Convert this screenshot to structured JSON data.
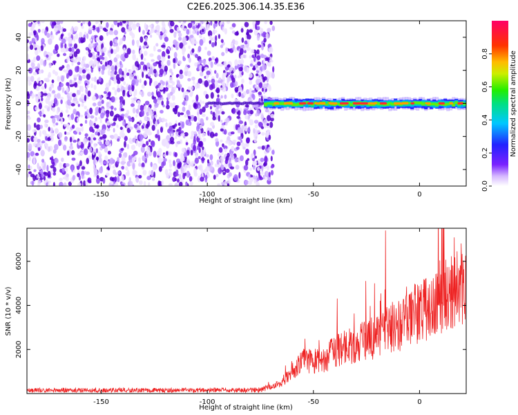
{
  "title": "C2E6.2025.306.14.35.E36",
  "chart_data": [
    {
      "type": "heatmap",
      "xlabel": "Height of straight line (km)",
      "ylabel": "Frequency (Hz)",
      "xlim": [
        -185,
        22
      ],
      "ylim": [
        -50,
        50
      ],
      "xticks": [
        -150,
        -100,
        -50,
        0
      ],
      "yticks": [
        -40,
        -20,
        0,
        20,
        40
      ],
      "noise_region": [
        -185,
        -72
      ],
      "signal_region": [
        -72,
        22
      ],
      "signal_frequency": 0,
      "colorbar": {
        "label": "Normalized spectral amplitude",
        "range": [
          0.0,
          1.0
        ],
        "ticks": [
          0.0,
          0.2,
          0.4,
          0.6,
          0.8
        ],
        "tick_labels": [
          "0.0",
          "0.2",
          "0.4",
          "0.6",
          "0.8"
        ]
      }
    },
    {
      "type": "line",
      "xlabel": "Height of straight line (km)",
      "ylabel": "SNR (10 * v/v)",
      "xlim": [
        -185,
        22
      ],
      "ylim": [
        0,
        7500
      ],
      "xticks": [
        -150,
        -100,
        -50,
        0
      ],
      "yticks": [
        2000,
        4000,
        6000
      ],
      "color": "#ee2222",
      "profile": {
        "x": [
          -185,
          -120,
          -75,
          -65,
          -60,
          -55,
          -50,
          -45,
          -40,
          -35,
          -30,
          -25,
          -20,
          -17,
          -15,
          -10,
          -5,
          0,
          5,
          10,
          15,
          22
        ],
        "y": [
          150,
          150,
          160,
          400,
          900,
          1300,
          1300,
          1350,
          1700,
          1900,
          1900,
          2200,
          2200,
          2400,
          2600,
          2700,
          2900,
          3200,
          3500,
          3900,
          4200,
          4600
        ]
      },
      "peak": {
        "x": -16,
        "y": 7400
      }
    }
  ]
}
